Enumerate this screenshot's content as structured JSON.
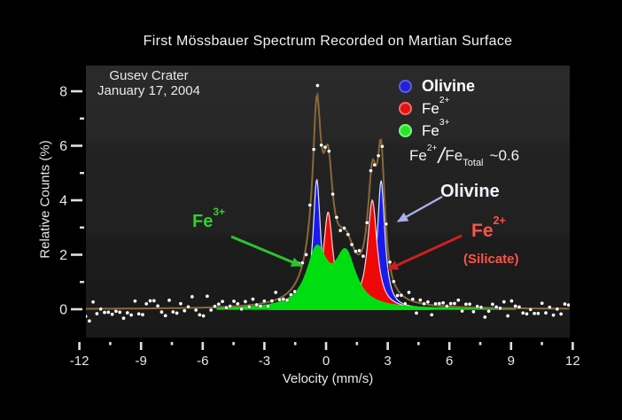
{
  "title": "First Mössbauer Spectrum Recorded on Martian Surface",
  "site_label": {
    "line1": "Gusev Crater",
    "line2": "January 17, 2004"
  },
  "legend": {
    "items": [
      {
        "name": "Olivine",
        "base": "Olivine",
        "sup": "",
        "color": "#2222cf"
      },
      {
        "name": "Fe2+",
        "base": "Fe",
        "sup": "2+",
        "color": "#e41212"
      },
      {
        "name": "Fe3+",
        "base": "Fe",
        "sup": "3+",
        "color": "#2ae32a"
      }
    ]
  },
  "ratio": {
    "base1": "Fe",
    "sup1": "2+",
    "slash": "/",
    "base2": "Fe",
    "sub2": "Total",
    "value": "~0.6"
  },
  "annotations": {
    "olivine": {
      "text": "Olivine",
      "color": "#f2f2ff",
      "arrow_color": "#a9b1e8"
    },
    "fe2": {
      "base": "Fe",
      "sup": "2+",
      "sub_label": "(Silicate)",
      "color": "#ff5347",
      "arrow_color": "#cc2020"
    },
    "fe3": {
      "base": "Fe",
      "sup": "3+",
      "color": "#2bd42b",
      "arrow_color": "#2cc42c"
    }
  },
  "colors": {
    "background": "#000000",
    "tick": "#e0e0e0",
    "tick_label": "#e8e8e8",
    "fit_line": "#8a683a",
    "data_points": "#ffffff"
  },
  "chart_data": {
    "type": "area",
    "description": "Mössbauer spectrum: white measured data points with noise, brown total-fit line, and three filled Lorentzian doublet subspectra (Olivine blue, Fe2+ silicate red, Fe3+ green).",
    "title": "First Mössbauer Spectrum Recorded on Martian Surface",
    "xlabel": "Velocity (mm/s)",
    "ylabel": "Relative Counts (%)",
    "xlim": [
      -12,
      12
    ],
    "ylim": [
      -1.1,
      9
    ],
    "x_major_ticks": [
      -12,
      -9,
      -6,
      -3,
      0,
      3,
      6,
      9,
      12
    ],
    "x_minor_ticks": [
      -10.5,
      -7.5,
      -4.5,
      -1.5,
      1.5,
      4.5,
      7.5,
      10.5
    ],
    "y_major_ticks": [
      0,
      2,
      4,
      6,
      8
    ],
    "y_minor_ticks": [
      1,
      3,
      5,
      7
    ],
    "grid": false,
    "legend_position": "upper right",
    "total_peak_readings": [
      {
        "velocity": -0.5,
        "relative_counts": 8.3
      },
      {
        "velocity": 2.6,
        "relative_counts": 6.1
      }
    ],
    "series": [
      {
        "name": "Olivine",
        "role": "component",
        "color": "#1a1aee",
        "stroke": "#dfe4ff",
        "peaks": [
          [
            -0.45,
            4.75,
            0.22
          ],
          [
            2.68,
            4.7,
            0.22
          ]
        ],
        "range": [
          -2.8,
          5.0
        ]
      },
      {
        "name": "Fe2+ (Silicate)",
        "role": "component",
        "color": "#ee0808",
        "stroke": "#ffd2d2",
        "peaks": [
          [
            0.1,
            3.5,
            0.28
          ],
          [
            2.25,
            3.95,
            0.28
          ]
        ],
        "range": [
          -2.6,
          5.2
        ]
      },
      {
        "name": "Fe3+",
        "role": "component",
        "color": "#00dd11",
        "stroke": "#00e512",
        "peaks": [
          [
            -0.45,
            2.05,
            0.6
          ],
          [
            0.95,
            1.9,
            0.6
          ]
        ],
        "range": [
          -5.3,
          9.2
        ]
      },
      {
        "name": "Total fit",
        "role": "fit-line",
        "color": "#8a683a"
      },
      {
        "name": "Measured counts",
        "role": "scatter",
        "color": "#ffffff",
        "points": 128,
        "x_start": -11.7,
        "x_end": 11.8,
        "noise_sigma": 0.17,
        "seed": 13
      }
    ]
  }
}
